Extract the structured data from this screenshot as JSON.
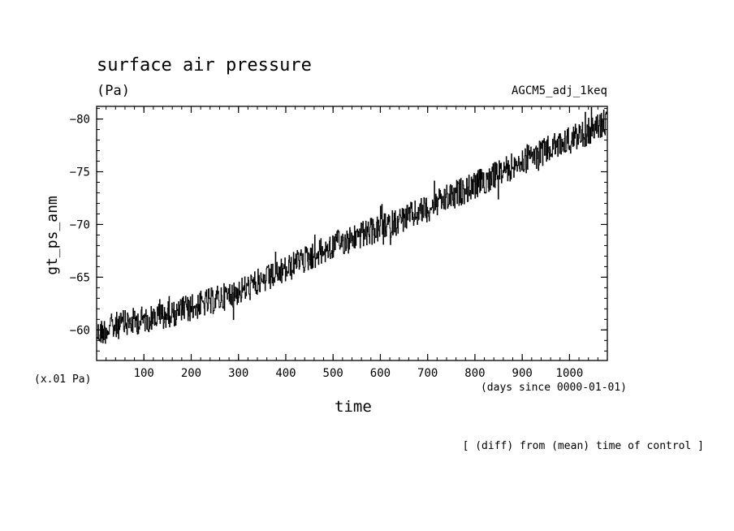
{
  "chart_data": {
    "type": "line",
    "title": "surface air pressure",
    "unit_label": "(Pa)",
    "run_label": "AGCM5_adj_1keq",
    "scale_note": "(x.01 Pa)",
    "xlabel": "time",
    "x_unit_label": "(days since 0000-01-01)",
    "ylabel": "gt_ps_anm",
    "footer": "[ (diff) from (mean) time of control ]",
    "xlim": [
      0,
      1080
    ],
    "ylim": [
      -57.1,
      -81.2
    ],
    "y_axis_inverted": true,
    "x_ticks": [
      100,
      200,
      300,
      400,
      500,
      600,
      700,
      800,
      900,
      1000
    ],
    "y_ticks": [
      -60,
      -65,
      -70,
      -75,
      -80
    ],
    "grid": false,
    "line_color": "#000000",
    "series": [
      {
        "x": [
          0,
          40,
          80,
          120,
          160,
          200,
          240,
          280,
          320,
          360,
          400,
          440,
          480,
          520,
          560,
          600,
          640,
          680,
          720,
          760,
          800,
          840,
          880,
          920,
          960,
          1000,
          1040,
          1080
        ],
        "values": [
          -59.6,
          -60.4,
          -60.8,
          -61.2,
          -61.6,
          -62.1,
          -62.7,
          -63.3,
          -64.0,
          -64.8,
          -65.7,
          -66.7,
          -67.5,
          -68.4,
          -69.0,
          -69.6,
          -70.4,
          -71.1,
          -72.0,
          -72.9,
          -73.7,
          -74.6,
          -75.5,
          -76.4,
          -77.2,
          -78.0,
          -78.8,
          -79.8
        ]
      }
    ]
  }
}
